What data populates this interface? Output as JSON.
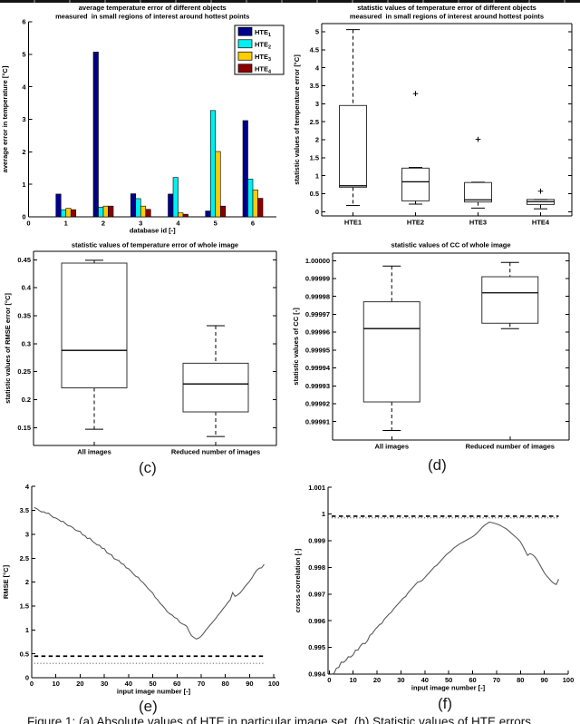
{
  "figure": {
    "caption": "Figure 1: (a) Absolute values of HTE in particular image set. (b) Statistic values of HTE errors"
  },
  "subplot_labels": {
    "c": "(c)",
    "d": "(d)",
    "e": "(e)",
    "f": "(f)"
  },
  "colors": {
    "bar_series": [
      "#00008B",
      "#00F0F0",
      "#FFCC00",
      "#8B0000"
    ],
    "line": "#5a5a5a",
    "ref_dashed": "#000000",
    "ref_dotted": "#6f6f6f",
    "box_line": "#333333"
  },
  "chart_data": [
    {
      "id": "a",
      "type": "bar",
      "title_lines": [
        "average temperature error of different objects",
        "measured  in small regions of interest around hottest points"
      ],
      "xlabel": "database id [-]",
      "ylabel": "average error in temperature [°C]",
      "categories": [
        "1",
        "2",
        "3",
        "4",
        "5",
        "6"
      ],
      "series": [
        {
          "name": "HTE_1",
          "color_index": 0,
          "values": [
            0.7,
            5.07,
            0.71,
            0.7,
            0.18,
            2.96
          ]
        },
        {
          "name": "HTE_2",
          "color_index": 1,
          "values": [
            0.22,
            0.3,
            0.56,
            1.21,
            3.27,
            1.16
          ]
        },
        {
          "name": "HTE_3",
          "color_index": 2,
          "values": [
            0.26,
            0.33,
            0.33,
            0.12,
            2.01,
            0.83
          ]
        },
        {
          "name": "HTE_4",
          "color_index": 3,
          "values": [
            0.22,
            0.33,
            0.23,
            0.08,
            0.33,
            0.57
          ]
        }
      ],
      "ylim": [
        0,
        6
      ],
      "yticks": [
        0,
        1,
        2,
        3,
        4,
        5,
        6
      ],
      "ytick_labels": [
        "0",
        "1",
        "2",
        "3",
        "4",
        "5",
        "6"
      ],
      "xticks": [
        0,
        1,
        2,
        3,
        4,
        5,
        6
      ],
      "xtick_labels": [
        "0",
        "1",
        "2",
        "3",
        "4",
        "5",
        "6"
      ],
      "legend": [
        "HTE_1",
        "HTE_2",
        "HTE_3",
        "HTE_4"
      ]
    },
    {
      "id": "b",
      "type": "box",
      "title_lines": [
        "statistic values of temperature error of different objects",
        "measured  in small regions of interest around hottest points"
      ],
      "ylabel": "statistic values of temperature error [°C]",
      "yticks": [
        0,
        0.5,
        1,
        1.5,
        2,
        2.5,
        3,
        3.5,
        4,
        4.5,
        5
      ],
      "ytick_labels": [
        "0",
        "0.5",
        "1",
        "1.5",
        "2",
        "2.5",
        "3",
        "3.5",
        "4",
        "4.5",
        "5"
      ],
      "boxes": [
        {
          "label": "HTE1",
          "lo": 0.17,
          "q1": 0.68,
          "med": 0.72,
          "q3": 2.95,
          "hi": 5.06,
          "outliers": []
        },
        {
          "label": "HTE2",
          "lo": 0.21,
          "q1": 0.3,
          "med": 0.83,
          "q3": 1.21,
          "hi": 1.23,
          "outliers": [
            3.28
          ]
        },
        {
          "label": "HTE3",
          "lo": 0.1,
          "q1": 0.27,
          "med": 0.33,
          "q3": 0.81,
          "hi": 0.82,
          "outliers": [
            2.01
          ]
        },
        {
          "label": "HTE4",
          "lo": 0.08,
          "q1": 0.2,
          "med": 0.28,
          "q3": 0.34,
          "hi": 0.34,
          "outliers": [
            0.57
          ]
        }
      ]
    },
    {
      "id": "c",
      "type": "box",
      "title_lines": [
        "statistic values of temperature error of whole image"
      ],
      "ylabel": "statistic values of RMSE error [°C]",
      "yticks": [
        0.15,
        0.2,
        0.25,
        0.3,
        0.35,
        0.4,
        0.45
      ],
      "ytick_labels": [
        "0.15",
        "0.2",
        "0.25",
        "0.3",
        "0.35",
        "0.4",
        "0.45"
      ],
      "boxes": [
        {
          "label": "All images",
          "lo": 0.147,
          "q1": 0.221,
          "med": 0.288,
          "q3": 0.444,
          "hi": 0.449,
          "outliers": []
        },
        {
          "label": "Reduced number of images",
          "lo": 0.134,
          "q1": 0.178,
          "med": 0.228,
          "q3": 0.265,
          "hi": 0.332,
          "outliers": []
        }
      ]
    },
    {
      "id": "d",
      "type": "box",
      "title_lines": [
        "statistic values of CC of whole image"
      ],
      "ylabel": "statistic values of CC [-]",
      "yticks": [
        0.99991,
        0.99992,
        0.99993,
        0.99994,
        0.99995,
        0.99996,
        0.99997,
        0.99998,
        0.99999,
        1.0
      ],
      "ytick_labels": [
        "0.99991",
        "0.99992",
        "0.99993",
        "0.99994",
        "0.99995",
        "0.99996",
        "0.99997",
        "0.99998",
        "0.99999",
        "1.00000"
      ],
      "boxes": [
        {
          "label": "All images",
          "lo": 0.999905,
          "q1": 0.999921,
          "med": 0.999962,
          "q3": 0.999977,
          "hi": 0.999997,
          "outliers": []
        },
        {
          "label": "Reduced number of images",
          "lo": 0.999962,
          "q1": 0.999965,
          "med": 0.999982,
          "q3": 0.999991,
          "hi": 0.999999,
          "outliers": []
        }
      ]
    },
    {
      "id": "e",
      "type": "line",
      "xlabel": "input image number [-]",
      "ylabel": "RMSE [°C]",
      "yticks": [
        0,
        0.5,
        1,
        1.5,
        2,
        2.5,
        3,
        3.5,
        4
      ],
      "ytick_labels": [
        "0",
        "0.5",
        "1",
        "1.5",
        "2",
        "2.5",
        "3",
        "3.5",
        "4"
      ],
      "xticks": [
        0,
        10,
        20,
        30,
        40,
        50,
        60,
        70,
        80,
        90,
        100
      ],
      "xtick_labels": [
        "0",
        "10",
        "20",
        "30",
        "40",
        "50",
        "60",
        "70",
        "80",
        "90",
        "100"
      ],
      "ref_lines": [
        {
          "y": 0.45,
          "style": "dashed"
        },
        {
          "y": 0.3,
          "style": "dotted"
        }
      ],
      "points": [
        [
          1,
          3.56
        ],
        [
          2,
          3.54
        ],
        [
          3,
          3.5
        ],
        [
          4,
          3.47
        ],
        [
          5,
          3.47
        ],
        [
          6,
          3.44
        ],
        [
          7,
          3.44
        ],
        [
          8,
          3.39
        ],
        [
          9,
          3.35
        ],
        [
          10,
          3.34
        ],
        [
          11,
          3.31
        ],
        [
          12,
          3.27
        ],
        [
          13,
          3.27
        ],
        [
          14,
          3.22
        ],
        [
          15,
          3.18
        ],
        [
          16,
          3.17
        ],
        [
          17,
          3.14
        ],
        [
          18,
          3.09
        ],
        [
          19,
          3.07
        ],
        [
          20,
          3.06
        ],
        [
          21,
          2.99
        ],
        [
          22,
          2.97
        ],
        [
          23,
          2.91
        ],
        [
          24,
          2.92
        ],
        [
          25,
          2.86
        ],
        [
          26,
          2.82
        ],
        [
          27,
          2.78
        ],
        [
          28,
          2.77
        ],
        [
          29,
          2.71
        ],
        [
          30,
          2.7
        ],
        [
          31,
          2.62
        ],
        [
          32,
          2.59
        ],
        [
          33,
          2.57
        ],
        [
          34,
          2.49
        ],
        [
          35,
          2.47
        ],
        [
          36,
          2.45
        ],
        [
          37,
          2.39
        ],
        [
          38,
          2.37
        ],
        [
          39,
          2.3
        ],
        [
          40,
          2.28
        ],
        [
          41,
          2.23
        ],
        [
          42,
          2.17
        ],
        [
          43,
          2.12
        ],
        [
          44,
          2.1
        ],
        [
          45,
          2.03
        ],
        [
          46,
          1.99
        ],
        [
          47,
          1.93
        ],
        [
          48,
          1.87
        ],
        [
          49,
          1.82
        ],
        [
          50,
          1.77
        ],
        [
          51,
          1.68
        ],
        [
          52,
          1.63
        ],
        [
          53,
          1.56
        ],
        [
          54,
          1.51
        ],
        [
          55,
          1.45
        ],
        [
          56,
          1.38
        ],
        [
          57,
          1.34
        ],
        [
          58,
          1.31
        ],
        [
          59,
          1.26
        ],
        [
          60,
          1.24
        ],
        [
          61,
          1.17
        ],
        [
          62,
          1.13
        ],
        [
          63,
          1.11
        ],
        [
          64,
          1.08
        ],
        [
          65,
          0.97
        ],
        [
          66,
          0.88
        ],
        [
          67,
          0.84
        ],
        [
          68,
          0.81
        ],
        [
          69,
          0.83
        ],
        [
          70,
          0.87
        ],
        [
          71,
          0.93
        ],
        [
          72,
          1.0
        ],
        [
          73,
          1.06
        ],
        [
          74,
          1.12
        ],
        [
          75,
          1.18
        ],
        [
          76,
          1.24
        ],
        [
          77,
          1.31
        ],
        [
          78,
          1.37
        ],
        [
          79,
          1.44
        ],
        [
          80,
          1.5
        ],
        [
          81,
          1.57
        ],
        [
          82,
          1.63
        ],
        [
          83,
          1.78
        ],
        [
          84,
          1.7
        ],
        [
          85,
          1.73
        ],
        [
          86,
          1.77
        ],
        [
          87,
          1.83
        ],
        [
          88,
          1.9
        ],
        [
          89,
          1.96
        ],
        [
          90,
          2.02
        ],
        [
          91,
          2.09
        ],
        [
          92,
          2.18
        ],
        [
          93,
          2.25
        ],
        [
          94,
          2.29
        ],
        [
          95,
          2.3
        ],
        [
          96,
          2.37
        ]
      ]
    },
    {
      "id": "f",
      "type": "line",
      "xlabel": "input image number [-]",
      "ylabel": "cross correlation [-]",
      "yticks": [
        0.994,
        0.995,
        0.996,
        0.997,
        0.998,
        0.999,
        1.0,
        1.001
      ],
      "ytick_labels": [
        "0.994",
        "0.995",
        "0.996",
        "0.997",
        "0.998",
        "0.999",
        "1",
        "1.001"
      ],
      "xticks": [
        0,
        10,
        20,
        30,
        40,
        50,
        60,
        70,
        80,
        90,
        100
      ],
      "xtick_labels": [
        "0",
        "10",
        "20",
        "30",
        "40",
        "50",
        "60",
        "70",
        "80",
        "90",
        "100"
      ],
      "ref_lines": [
        {
          "y": 0.99992,
          "style": "dashed"
        },
        {
          "y": 0.99986,
          "style": "dotted"
        }
      ],
      "points": [
        [
          1,
          0.994
        ],
        [
          2,
          0.99403
        ],
        [
          3,
          0.99422
        ],
        [
          4,
          0.99425
        ],
        [
          5,
          0.99445
        ],
        [
          6,
          0.99444
        ],
        [
          7,
          0.99452
        ],
        [
          8,
          0.99465
        ],
        [
          9,
          0.99464
        ],
        [
          10,
          0.99472
        ],
        [
          11,
          0.9949
        ],
        [
          12,
          0.9949
        ],
        [
          13,
          0.99505
        ],
        [
          14,
          0.99515
        ],
        [
          15,
          0.99514
        ],
        [
          16,
          0.99525
        ],
        [
          17,
          0.99545
        ],
        [
          18,
          0.99552
        ],
        [
          19,
          0.99565
        ],
        [
          20,
          0.99575
        ],
        [
          21,
          0.99585
        ],
        [
          22,
          0.9959
        ],
        [
          23,
          0.99605
        ],
        [
          24,
          0.99615
        ],
        [
          25,
          0.99625
        ],
        [
          26,
          0.99632
        ],
        [
          27,
          0.99645
        ],
        [
          28,
          0.99655
        ],
        [
          29,
          0.99665
        ],
        [
          30,
          0.99675
        ],
        [
          31,
          0.99685
        ],
        [
          32,
          0.99691
        ],
        [
          33,
          0.99705
        ],
        [
          34,
          0.99715
        ],
        [
          35,
          0.99725
        ],
        [
          36,
          0.99735
        ],
        [
          37,
          0.99745
        ],
        [
          38,
          0.99747
        ],
        [
          39,
          0.99752
        ],
        [
          40,
          0.99762
        ],
        [
          41,
          0.99772
        ],
        [
          42,
          0.99782
        ],
        [
          43,
          0.99792
        ],
        [
          44,
          0.99802
        ],
        [
          45,
          0.99808
        ],
        [
          46,
          0.99818
        ],
        [
          47,
          0.99828
        ],
        [
          48,
          0.99838
        ],
        [
          49,
          0.99848
        ],
        [
          50,
          0.99855
        ],
        [
          51,
          0.99862
        ],
        [
          52,
          0.99872
        ],
        [
          53,
          0.99878
        ],
        [
          54,
          0.99885
        ],
        [
          55,
          0.9989
        ],
        [
          56,
          0.99895
        ],
        [
          57,
          0.999
        ],
        [
          58,
          0.99905
        ],
        [
          59,
          0.9991
        ],
        [
          60,
          0.99915
        ],
        [
          61,
          0.99922
        ],
        [
          62,
          0.9993
        ],
        [
          63,
          0.9994
        ],
        [
          64,
          0.9995
        ],
        [
          65,
          0.99958
        ],
        [
          66,
          0.99964
        ],
        [
          67,
          0.9997
        ],
        [
          68,
          0.99968
        ],
        [
          69,
          0.99966
        ],
        [
          70,
          0.99963
        ],
        [
          71,
          0.9996
        ],
        [
          72,
          0.99955
        ],
        [
          73,
          0.9995
        ],
        [
          74,
          0.99945
        ],
        [
          75,
          0.99938
        ],
        [
          76,
          0.9993
        ],
        [
          77,
          0.99922
        ],
        [
          78,
          0.99914
        ],
        [
          79,
          0.99906
        ],
        [
          80,
          0.99896
        ],
        [
          81,
          0.9988
        ],
        [
          82,
          0.99862
        ],
        [
          83,
          0.99845
        ],
        [
          84,
          0.99852
        ],
        [
          85,
          0.99848
        ],
        [
          86,
          0.9984
        ],
        [
          87,
          0.99828
        ],
        [
          88,
          0.99812
        ],
        [
          89,
          0.99796
        ],
        [
          90,
          0.9978
        ],
        [
          91,
          0.99768
        ],
        [
          92,
          0.99758
        ],
        [
          93,
          0.99748
        ],
        [
          94,
          0.9974
        ],
        [
          95,
          0.99736
        ],
        [
          96,
          0.99756
        ]
      ]
    }
  ]
}
